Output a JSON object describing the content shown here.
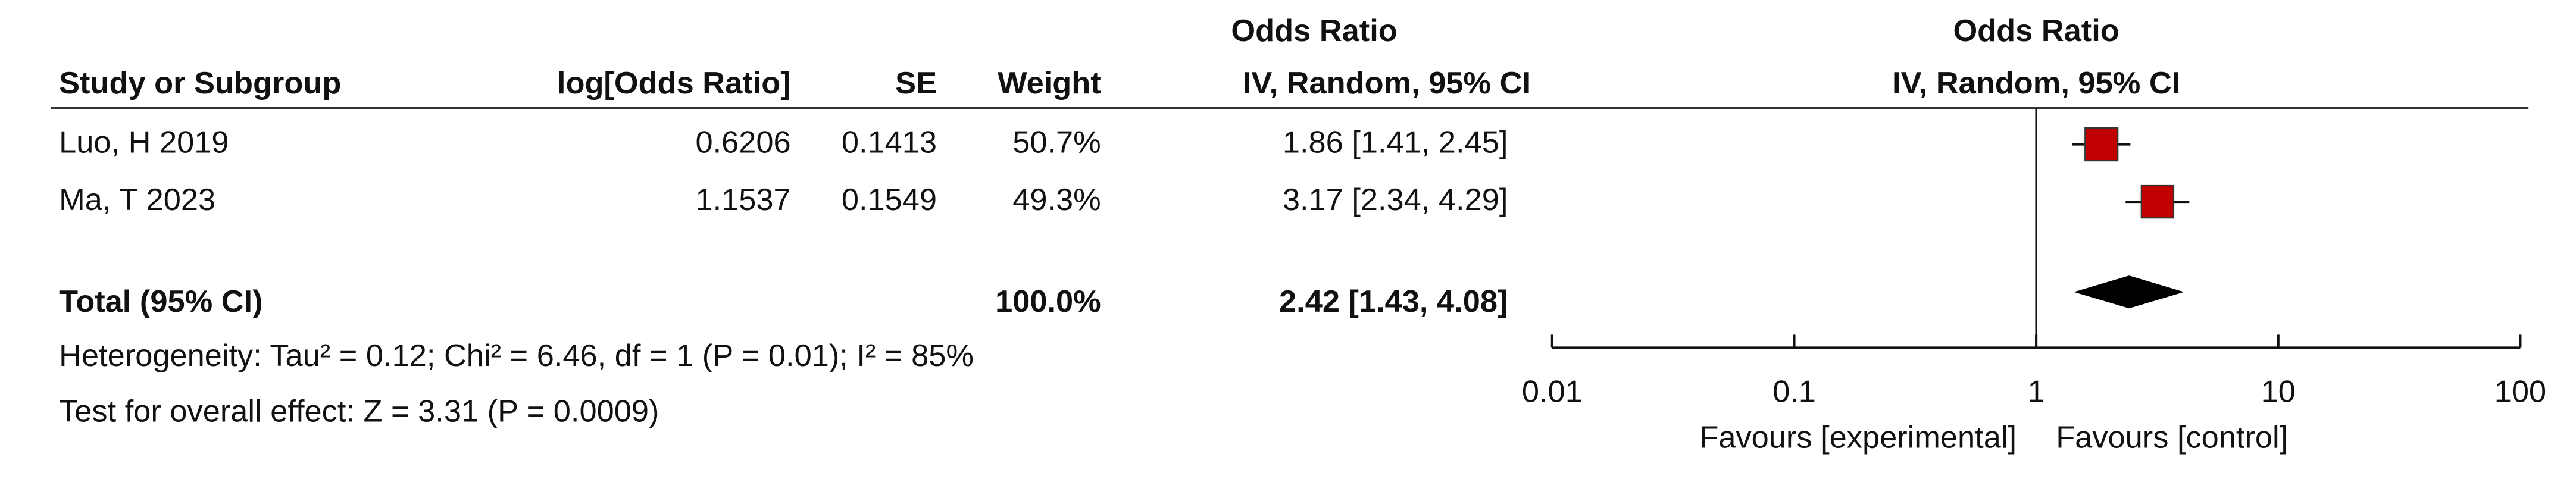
{
  "chart_data": {
    "type": "forest",
    "table_header": "Odds Ratio",
    "plot_header": "Odds Ratio",
    "plot_subheader": "IV, Random, 95% CI",
    "columns": [
      "Study or Subgroup",
      "log[Odds Ratio]",
      "SE",
      "Weight",
      "IV, Random, 95% CI"
    ],
    "studies": [
      {
        "name": "Luo, H 2019",
        "log_or": 0.6206,
        "se": 0.1413,
        "weight": {
          "value": 50.7,
          "label": "50.7%"
        },
        "or": 1.86,
        "lower": 1.41,
        "upper": 2.45,
        "or_label": "1.86 [1.41, 2.45]"
      },
      {
        "name": "Ma, T 2023",
        "log_or": 1.1537,
        "se": 0.1549,
        "weight": {
          "value": 49.3,
          "label": "49.3%"
        },
        "or": 3.17,
        "lower": 2.34,
        "upper": 4.29,
        "or_label": "3.17 [2.34, 4.29]"
      }
    ],
    "total": {
      "name": "Total (95% CI)",
      "weight": {
        "value": 100.0,
        "label": "100.0%"
      },
      "or": 2.42,
      "lower": 1.43,
      "upper": 4.08,
      "or_label": "2.42 [1.43, 4.08]"
    },
    "heterogeneity": "Heterogeneity: Tau² = 0.12; Chi² = 6.46, df = 1 (P = 0.01); I² = 85%",
    "overall_effect": "Test for overall effect: Z = 3.31 (P = 0.0009)",
    "xscale": "log",
    "xlim": [
      0.01,
      100
    ],
    "xticks": [
      0.01,
      0.1,
      1,
      10,
      100
    ],
    "favours_left": "Favours [experimental]",
    "favours_right": "Favours [control]",
    "color": "#c00000",
    "diamond_color": "#000000"
  }
}
